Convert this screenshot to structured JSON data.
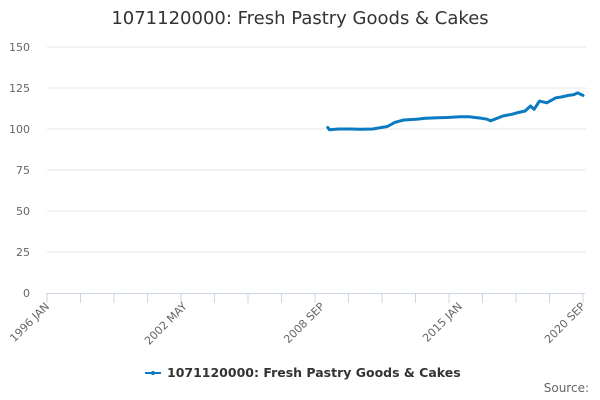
{
  "title": "1071120000: Fresh Pastry Goods & Cakes",
  "legend": {
    "label": "1071120000: Fresh Pastry Goods & Cakes",
    "color": "#0a7bc1"
  },
  "source_label": "Source:",
  "chart_data": {
    "type": "line",
    "title": "1071120000: Fresh Pastry Goods & Cakes",
    "xlabel": "",
    "ylabel": "",
    "ylim": [
      0,
      150
    ],
    "yticks": [
      0,
      25,
      50,
      75,
      100,
      125,
      150
    ],
    "xtick_labels": [
      "1996 JAN",
      "2002 MAY",
      "2008 SEP",
      "2015 JAN",
      "2020 SEP"
    ],
    "grid": "horizontal",
    "legend_position": "bottom",
    "series": [
      {
        "name": "1071120000: Fresh Pastry Goods & Cakes",
        "color": "#0a7bc1",
        "x": [
          "2008 DEC",
          "2009 JAN",
          "2009 JUN",
          "2010 JAN",
          "2010 JUN",
          "2011 JAN",
          "2011 JUN",
          "2011 SEP",
          "2012 JAN",
          "2012 JUN",
          "2013 JAN",
          "2013 JUN",
          "2014 JAN",
          "2014 JUN",
          "2015 JAN",
          "2015 JUN",
          "2016 JAN",
          "2016 APR",
          "2016 JUN",
          "2017 JAN",
          "2017 JUN",
          "2017 SEP",
          "2018 JAN",
          "2018 APR",
          "2018 JUN",
          "2018 SEP",
          "2019 JAN",
          "2019 JUN",
          "2019 SEP",
          "2020 JAN",
          "2020 APR",
          "2020 JUN",
          "2020 SEP"
        ],
        "values": [
          101,
          99.5,
          100,
          100,
          99.8,
          100,
          101,
          101.5,
          104,
          105.5,
          106,
          106.5,
          106.8,
          107,
          107.5,
          107.5,
          106.5,
          106,
          105,
          108,
          109,
          110,
          111,
          114,
          112,
          117,
          116,
          119,
          119.5,
          120.5,
          121,
          122,
          120.5
        ]
      }
    ]
  }
}
